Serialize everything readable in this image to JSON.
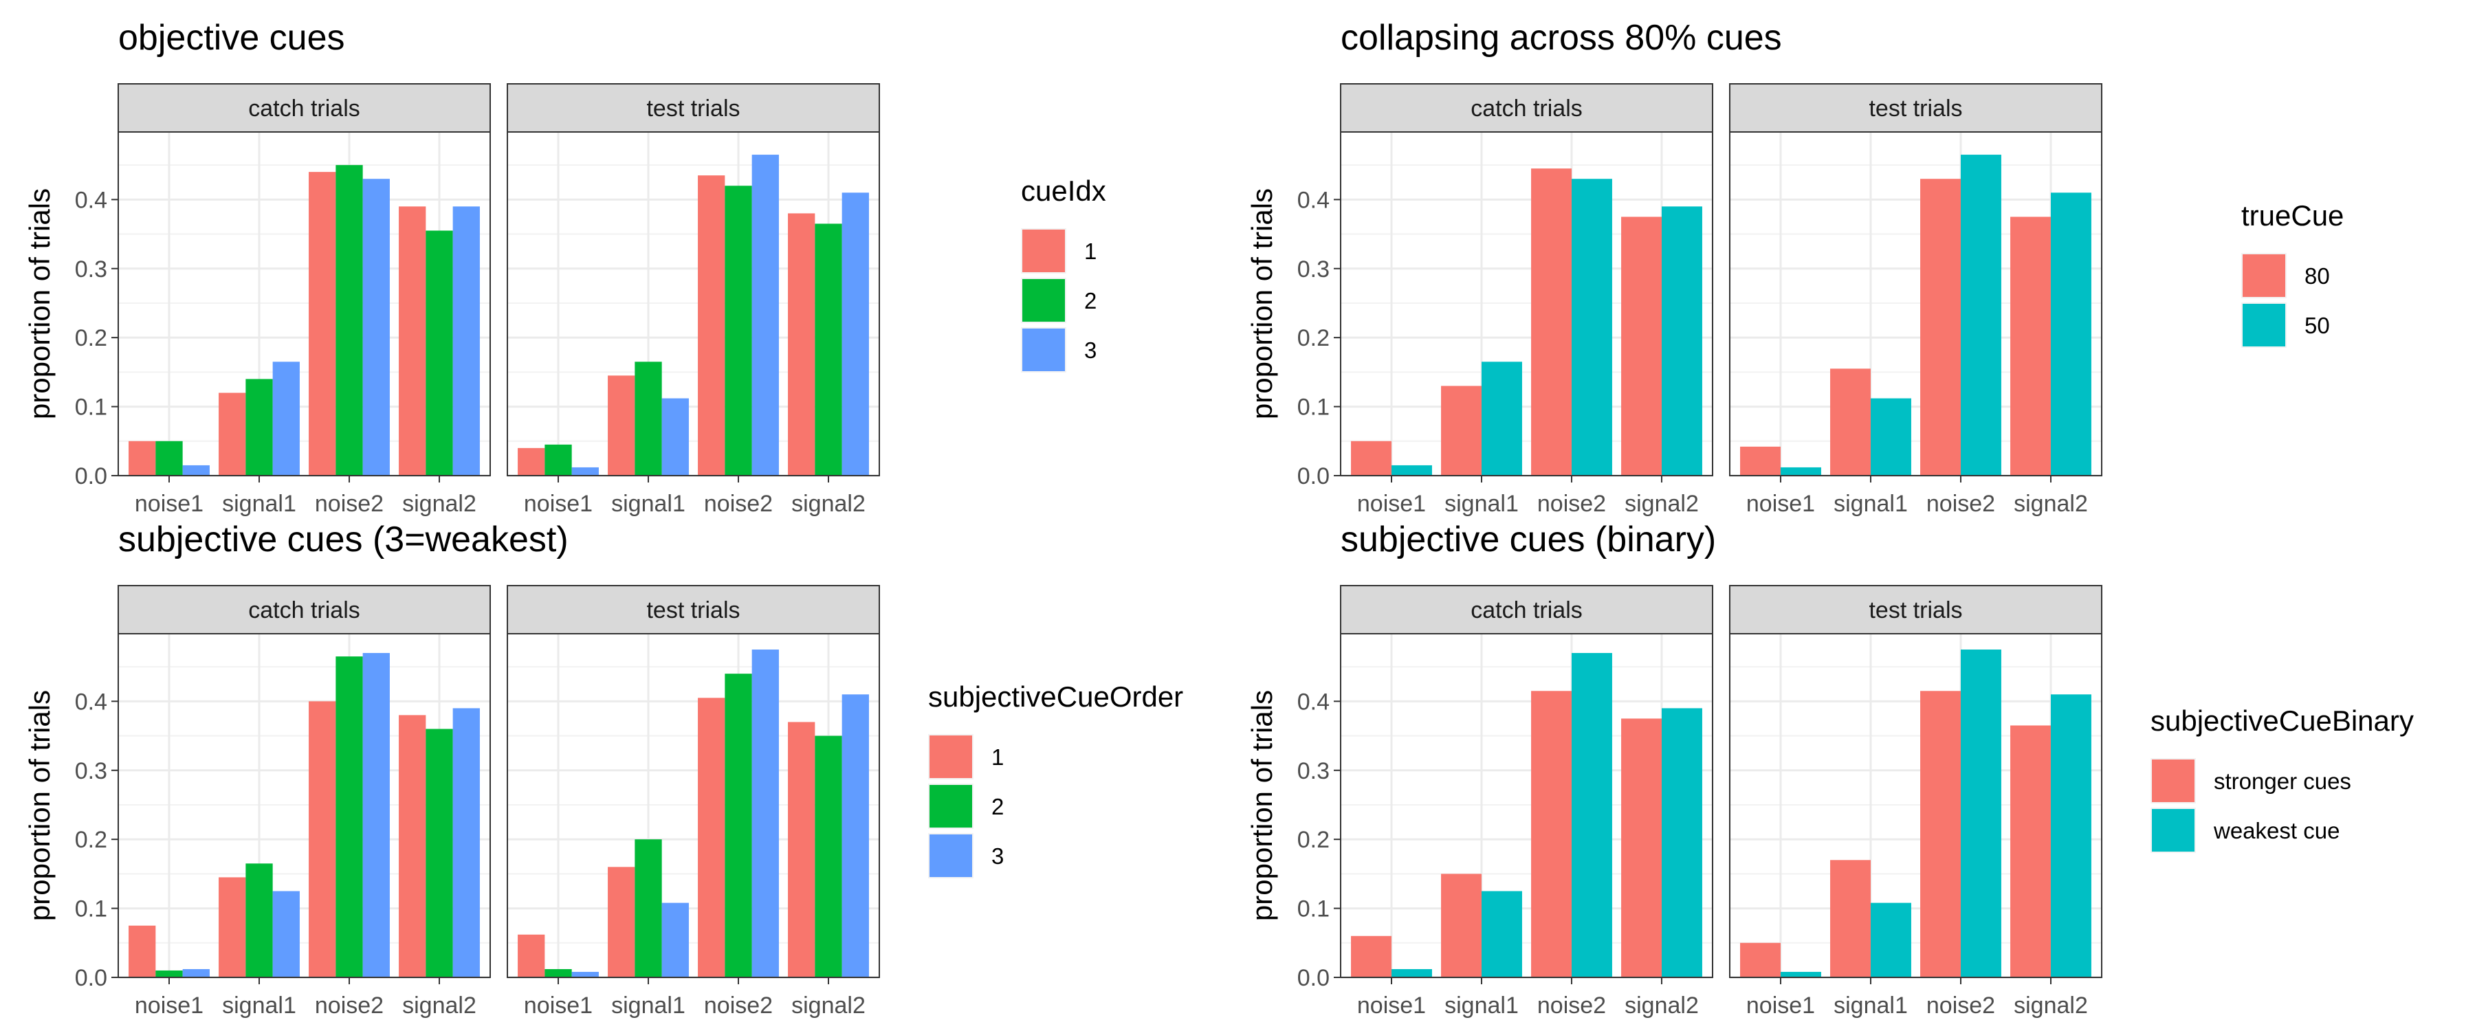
{
  "chart_data": [
    {
      "type": "bar",
      "title": "objective cues",
      "ylabel": "proportion of trials",
      "xlabel": "",
      "ylim": [
        0,
        0.48
      ],
      "yticks": [
        "0.0",
        "0.1",
        "0.2",
        "0.3",
        "0.4"
      ],
      "grid": true,
      "legend_position": "right",
      "legend_title": "cueIdx",
      "categories": [
        "noise1",
        "signal1",
        "noise2",
        "signal2"
      ],
      "facets": [
        {
          "label": "catch trials",
          "series": [
            {
              "name": "1",
              "color": "#F8766D",
              "values": [
                0.05,
                0.12,
                0.44,
                0.39
              ]
            },
            {
              "name": "2",
              "color": "#00BA38",
              "values": [
                0.05,
                0.14,
                0.45,
                0.355
              ]
            },
            {
              "name": "3",
              "color": "#619CFF",
              "values": [
                0.015,
                0.165,
                0.43,
                0.39
              ]
            }
          ]
        },
        {
          "label": "test trials",
          "series": [
            {
              "name": "1",
              "color": "#F8766D",
              "values": [
                0.04,
                0.145,
                0.435,
                0.38
              ]
            },
            {
              "name": "2",
              "color": "#00BA38",
              "values": [
                0.045,
                0.165,
                0.42,
                0.365
              ]
            },
            {
              "name": "3",
              "color": "#619CFF",
              "values": [
                0.012,
                0.112,
                0.465,
                0.41
              ]
            }
          ]
        }
      ]
    },
    {
      "type": "bar",
      "title": "collapsing across 80% cues",
      "ylabel": "proportion of trials",
      "xlabel": "",
      "ylim": [
        0,
        0.48
      ],
      "yticks": [
        "0.0",
        "0.1",
        "0.2",
        "0.3",
        "0.4"
      ],
      "grid": true,
      "legend_position": "right",
      "legend_title": "trueCue",
      "categories": [
        "noise1",
        "signal1",
        "noise2",
        "signal2"
      ],
      "facets": [
        {
          "label": "catch trials",
          "series": [
            {
              "name": "80",
              "color": "#F8766D",
              "values": [
                0.05,
                0.13,
                0.445,
                0.375
              ]
            },
            {
              "name": "50",
              "color": "#00BFC4",
              "values": [
                0.015,
                0.165,
                0.43,
                0.39
              ]
            }
          ]
        },
        {
          "label": "test trials",
          "series": [
            {
              "name": "80",
              "color": "#F8766D",
              "values": [
                0.042,
                0.155,
                0.43,
                0.375
              ]
            },
            {
              "name": "50",
              "color": "#00BFC4",
              "values": [
                0.012,
                0.112,
                0.465,
                0.41
              ]
            }
          ]
        }
      ]
    },
    {
      "type": "bar",
      "title": "subjective cues (3=weakest)",
      "ylabel": "proportion of trials",
      "xlabel": "",
      "ylim": [
        0,
        0.48
      ],
      "yticks": [
        "0.0",
        "0.1",
        "0.2",
        "0.3",
        "0.4"
      ],
      "grid": true,
      "legend_position": "right",
      "legend_title": "subjectiveCueOrder",
      "categories": [
        "noise1",
        "signal1",
        "noise2",
        "signal2"
      ],
      "facets": [
        {
          "label": "catch trials",
          "series": [
            {
              "name": "1",
              "color": "#F8766D",
              "values": [
                0.075,
                0.145,
                0.4,
                0.38
              ]
            },
            {
              "name": "2",
              "color": "#00BA38",
              "values": [
                0.01,
                0.165,
                0.465,
                0.36
              ]
            },
            {
              "name": "3",
              "color": "#619CFF",
              "values": [
                0.012,
                0.125,
                0.47,
                0.39
              ]
            }
          ]
        },
        {
          "label": "test trials",
          "series": [
            {
              "name": "1",
              "color": "#F8766D",
              "values": [
                0.062,
                0.16,
                0.405,
                0.37
              ]
            },
            {
              "name": "2",
              "color": "#00BA38",
              "values": [
                0.012,
                0.2,
                0.44,
                0.35
              ]
            },
            {
              "name": "3",
              "color": "#619CFF",
              "values": [
                0.008,
                0.108,
                0.475,
                0.41
              ]
            }
          ]
        }
      ]
    },
    {
      "type": "bar",
      "title": "subjective cues (binary)",
      "ylabel": "proportion of trials",
      "xlabel": "",
      "ylim": [
        0,
        0.48
      ],
      "yticks": [
        "0.0",
        "0.1",
        "0.2",
        "0.3",
        "0.4"
      ],
      "grid": true,
      "legend_position": "right",
      "legend_title": "subjectiveCueBinary",
      "categories": [
        "noise1",
        "signal1",
        "noise2",
        "signal2"
      ],
      "facets": [
        {
          "label": "catch trials",
          "series": [
            {
              "name": "stronger cues",
              "color": "#F8766D",
              "values": [
                0.06,
                0.15,
                0.415,
                0.375
              ]
            },
            {
              "name": "weakest cue",
              "color": "#00BFC4",
              "values": [
                0.012,
                0.125,
                0.47,
                0.39
              ]
            }
          ]
        },
        {
          "label": "test trials",
          "series": [
            {
              "name": "stronger cues",
              "color": "#F8766D",
              "values": [
                0.05,
                0.17,
                0.415,
                0.365
              ]
            },
            {
              "name": "weakest cue",
              "color": "#00BFC4",
              "values": [
                0.008,
                0.108,
                0.475,
                0.41
              ]
            }
          ]
        }
      ]
    }
  ]
}
